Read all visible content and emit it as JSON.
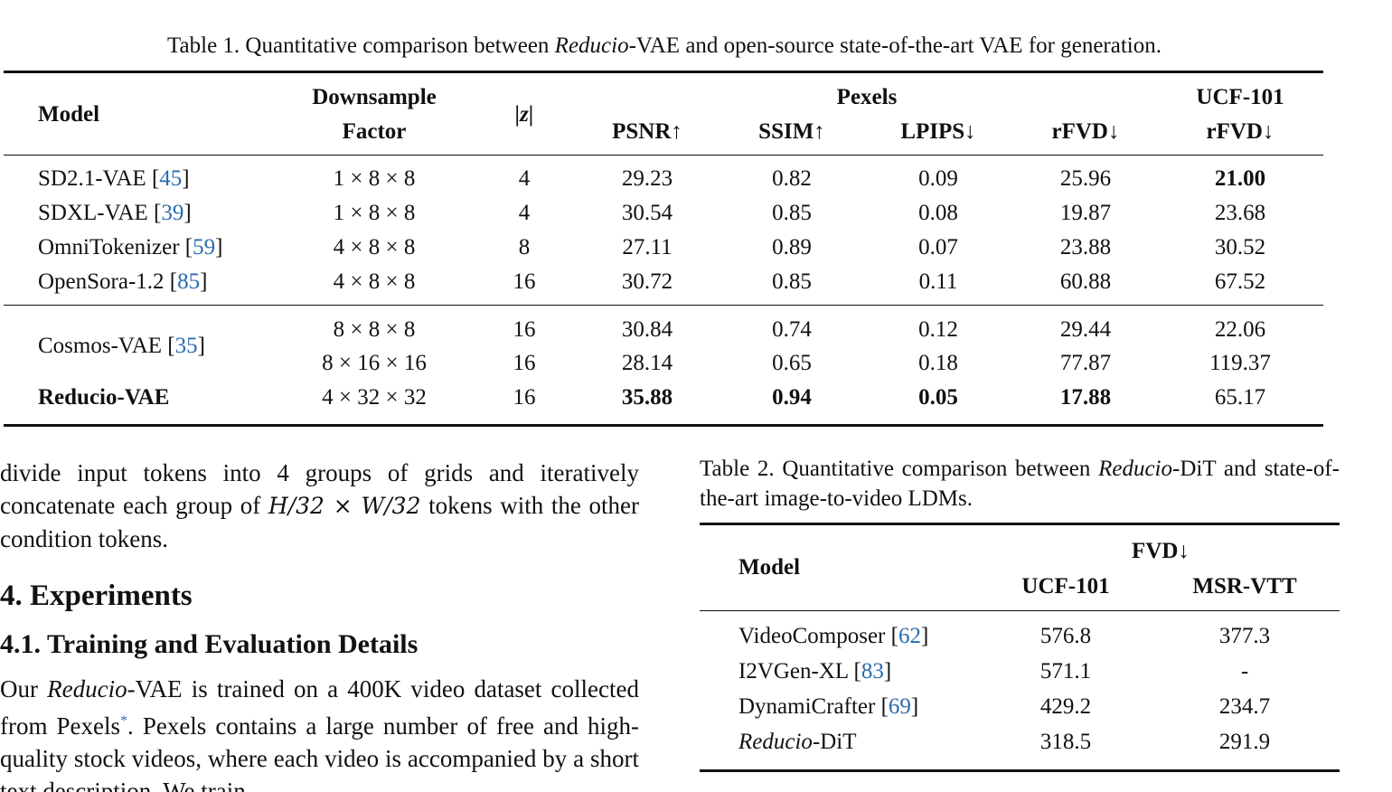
{
  "table1": {
    "caption": {
      "prefix": "Table 1. Quantitative comparison between ",
      "italic": "Reducio",
      "suffix": "-VAE and open-source state-of-the-art VAE for generation."
    },
    "headers": {
      "model": "Model",
      "downsample_line1": "Downsample",
      "downsample_line2": "Factor",
      "z": "|z|",
      "pexels": "Pexels",
      "psnr": "PSNR↑",
      "ssim": "SSIM↑",
      "lpips": "LPIPS↓",
      "rfvd": "rFVD↓",
      "ucf_line1": "UCF-101",
      "ucf_line2": "rFVD↓"
    },
    "rows": [
      {
        "model": "SD2.1-VAE [",
        "cite": "45",
        "close": "]",
        "factor": "1 × 8 × 8",
        "z": "4",
        "psnr": "29.23",
        "ssim": "0.82",
        "lpips": "0.09",
        "rfvd": "25.96",
        "ucf": "21.00"
      },
      {
        "model": "SDXL-VAE [",
        "cite": "39",
        "close": "]",
        "factor": "1 × 8 × 8",
        "z": "4",
        "psnr": "30.54",
        "ssim": "0.85",
        "lpips": "0.08",
        "rfvd": "19.87",
        "ucf": "23.68"
      },
      {
        "model": "OmniTokenizer [",
        "cite": "59",
        "close": "]",
        "factor": "4 × 8 × 8",
        "z": "8",
        "psnr": "27.11",
        "ssim": "0.89",
        "lpips": "0.07",
        "rfvd": "23.88",
        "ucf": "30.52"
      },
      {
        "model": "OpenSora-1.2 [",
        "cite": "85",
        "close": "]",
        "factor": "4 × 8 × 8",
        "z": "16",
        "psnr": "30.72",
        "ssim": "0.85",
        "lpips": "0.11",
        "rfvd": "60.88",
        "ucf": "67.52"
      },
      {
        "model": "Cosmos-VAE [",
        "cite": "35",
        "close": "]",
        "factor": "8 × 8 × 8",
        "z": "16",
        "psnr": "30.84",
        "ssim": "0.74",
        "lpips": "0.12",
        "rfvd": "29.44",
        "ucf": "22.06"
      },
      {
        "model": "",
        "cite": "",
        "close": "",
        "factor": "8 × 16 × 16",
        "z": "16",
        "psnr": "28.14",
        "ssim": "0.65",
        "lpips": "0.18",
        "rfvd": "77.87",
        "ucf": "119.37"
      },
      {
        "model": "Reducio-VAE",
        "cite": "",
        "close": "",
        "factor": "4 × 32 × 32",
        "z": "16",
        "psnr": "35.88",
        "ssim": "0.94",
        "lpips": "0.05",
        "rfvd": "17.88",
        "ucf": "65.17"
      }
    ]
  },
  "body": {
    "para1_a": "divide input tokens into 4 groups of grids and iteratively concatenate each group of ",
    "para1_math": "H/32 × W/32",
    "para1_b": " tokens with the other condition tokens.",
    "section_title": "4. Experiments",
    "subsection_title": "4.1. Training and Evaluation Details",
    "para2_a": "Our ",
    "para2_italic": "Reducio",
    "para2_b": "-VAE is trained on a 400K video dataset collected from Pexels",
    "para2_star": "*",
    "para2_c": ". Pexels contains a large number of free and high-quality stock videos, where each video is accompanied by a short text description. We train"
  },
  "table2": {
    "caption": {
      "prefix": "Table 2. Quantitative comparison between ",
      "italic": "Reducio",
      "suffix": "-DiT and state-of-the-art image-to-video LDMs."
    },
    "headers": {
      "model": "Model",
      "fvd": "FVD↓",
      "ucf": "UCF-101",
      "msr": "MSR-VTT"
    },
    "rows": [
      {
        "model": "VideoComposer [",
        "cite": "62",
        "close": "]",
        "ucf": "576.8",
        "msr": "377.3"
      },
      {
        "model": "I2VGen-XL [",
        "cite": "83",
        "close": "]",
        "ucf": "571.1",
        "msr": "-"
      },
      {
        "model": "DynamiCrafter [",
        "cite": "69",
        "close": "]",
        "ucf": "429.2",
        "msr": "234.7"
      },
      {
        "model_italic": "Reducio",
        "model_rest": "-DiT",
        "ucf": "318.5",
        "msr": "291.9"
      }
    ]
  }
}
